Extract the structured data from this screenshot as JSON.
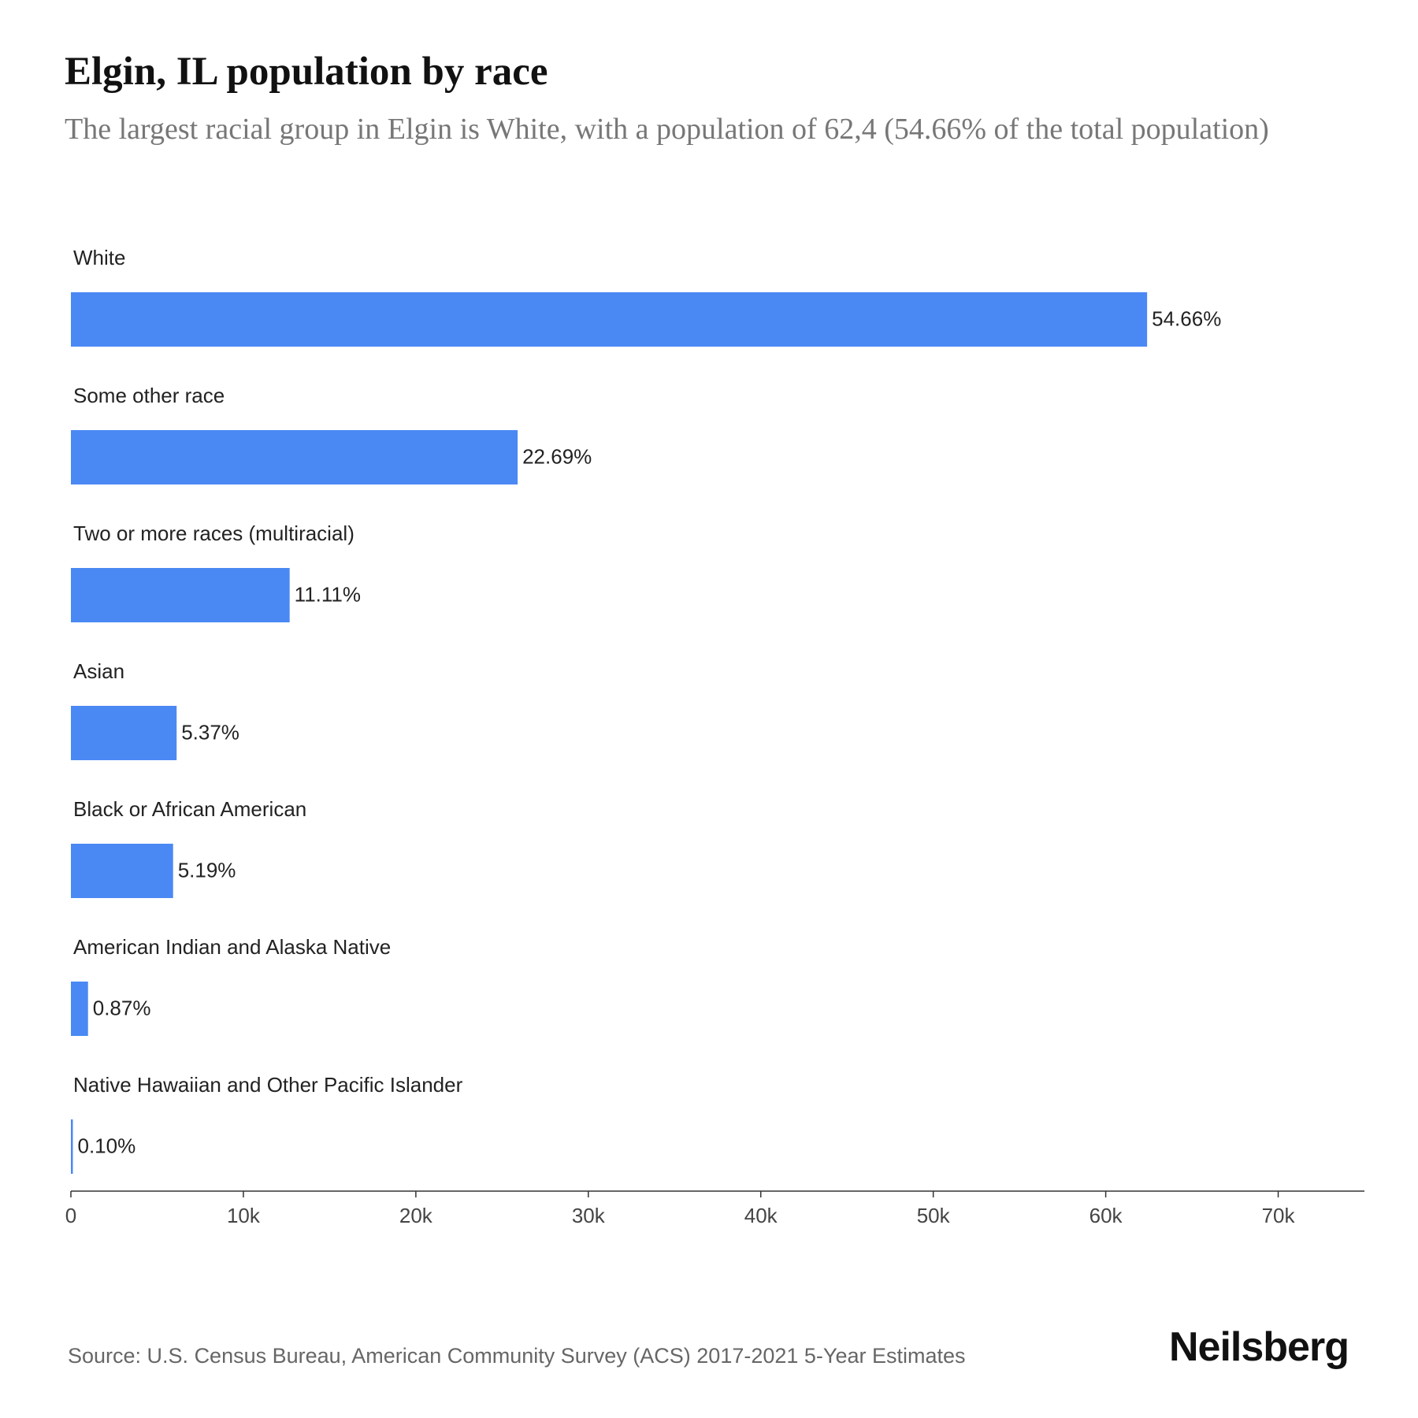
{
  "title": "Elgin, IL population by race",
  "subtitle": "The largest racial group in Elgin is White, with a population of 62,4 (54.66% of the total population)",
  "source": "Source: U.S. Census Bureau, American Community Survey (ACS) 2017-2021 5-Year Estimates",
  "brand": "Neilsberg",
  "chart_data": {
    "type": "hbar",
    "categories": [
      "White",
      "Some other race",
      "Two or more races (multiracial)",
      "Asian",
      "Black or African American",
      "American Indian and Alaska Native",
      "Native Hawaiian and Other Pacific Islander"
    ],
    "values": [
      62400,
      25903,
      12683,
      6130,
      5925,
      993,
      114
    ],
    "value_labels": [
      "54.66%",
      "22.69%",
      "11.11%",
      "5.37%",
      "5.19%",
      "0.87%",
      "0.10%"
    ],
    "color": "#4a89f3",
    "xlim": [
      0,
      75000
    ],
    "xticks": [
      0,
      {
        "value": 10000,
        "label": "10k"
      },
      {
        "value": 20000,
        "label": "20k"
      },
      {
        "value": 30000,
        "label": "30k"
      },
      {
        "value": 40000,
        "label": "40k"
      },
      {
        "value": 50000,
        "label": "50k"
      },
      {
        "value": 60000,
        "label": "60k"
      },
      {
        "value": 70000,
        "label": "70k"
      }
    ]
  }
}
